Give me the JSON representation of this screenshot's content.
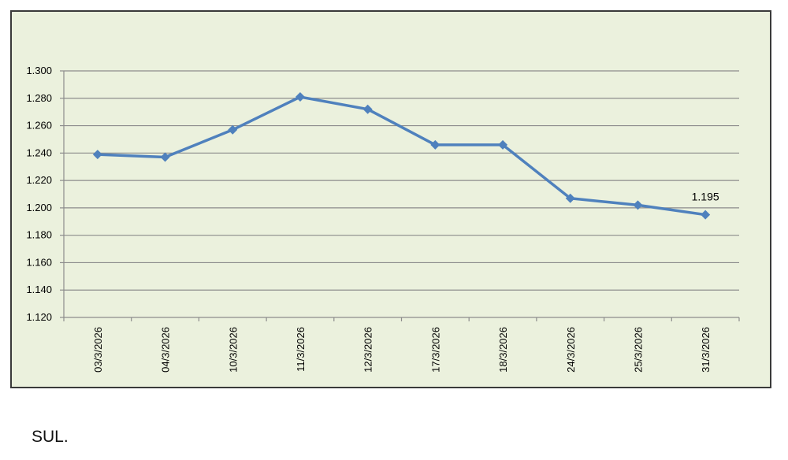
{
  "chart_data": {
    "type": "line",
    "title": "",
    "xlabel": "",
    "ylabel": "",
    "categories": [
      "03/3/2026",
      "04/3/2026",
      "10/3/2026",
      "11/3/2026",
      "12/3/2026",
      "17/3/2026",
      "18/3/2026",
      "24/3/2026",
      "25/3/2026",
      "31/3/2026"
    ],
    "series": [
      {
        "values": [
          1.239,
          1.237,
          1.257,
          1.281,
          1.272,
          1.246,
          1.246,
          1.207,
          1.202,
          1.195
        ]
      }
    ],
    "ylim": [
      1.12,
      1.3
    ],
    "yticks": [
      "1.120",
      "1.140",
      "1.160",
      "1.180",
      "1.200",
      "1.220",
      "1.240",
      "1.260",
      "1.280",
      "1.300"
    ],
    "data_labels": [
      {
        "index": 9,
        "text": "1.195"
      }
    ],
    "grid": "horizontal",
    "colors": {
      "line": "#4f81bd",
      "background": "#ebf1dd",
      "grid": "#8c8c8c"
    }
  },
  "footer": {
    "text": "SUL."
  }
}
